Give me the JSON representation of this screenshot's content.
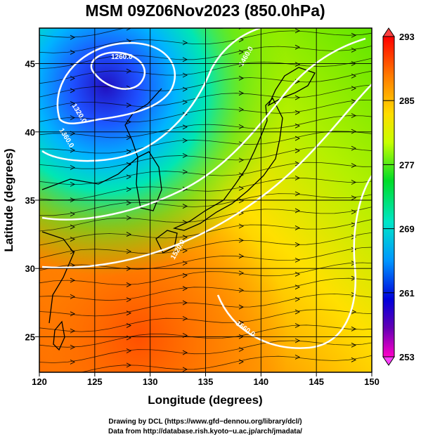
{
  "title": "MSM 09Z06Nov2023 (850.0hPa)",
  "axes": {
    "xlabel": "Longitude (degrees)",
    "ylabel": "Latitude  (degrees)",
    "x_ticks": [
      "120",
      "125",
      "130",
      "135",
      "140",
      "145",
      "150"
    ],
    "y_ticks": [
      "25",
      "30",
      "35",
      "40",
      "45"
    ],
    "xlim": [
      120,
      150
    ],
    "ylim": [
      22.4,
      47.6
    ],
    "x_tick_values": [
      120,
      125,
      130,
      135,
      140,
      145,
      150
    ],
    "y_tick_values": [
      25,
      30,
      35,
      40,
      45
    ]
  },
  "colorbar": {
    "labels": [
      "293",
      "285",
      "277",
      "269",
      "261",
      "253"
    ],
    "label_values": [
      293,
      285,
      277,
      269,
      261,
      253
    ],
    "range": [
      253,
      293
    ],
    "colors": [
      "#ff0000",
      "#ff7800",
      "#ffdc00",
      "#c8ff00",
      "#00dc28",
      "#00e6c8",
      "#0096ff",
      "#0000dc",
      "#6400b4",
      "#ff00c8"
    ]
  },
  "contours": {
    "color": "#ffffff",
    "labels": [
      "1260.0",
      "1320.0",
      "1360.0",
      "1460.0",
      "1520.0",
      "1560.0"
    ]
  },
  "credits": {
    "line1": "Drawing by DCL (https://www.gfd−dennou.org/library/dcl/)",
    "line2": "Data from http://database.rish.kyoto−u.ac.jp/arch/jmadata/"
  },
  "chart_data": {
    "type": "heatmap",
    "title": "MSM 09Z06Nov2023 (850.0hPa)",
    "xlabel": "Longitude (degrees)",
    "ylabel": "Latitude  (degrees)",
    "xlim": [
      120,
      150
    ],
    "ylim": [
      22.4,
      47.6
    ],
    "color_range": [
      253,
      293
    ],
    "grid": true,
    "overlays": [
      "streamlines",
      "geopotential height contours",
      "coastlines"
    ]
  }
}
